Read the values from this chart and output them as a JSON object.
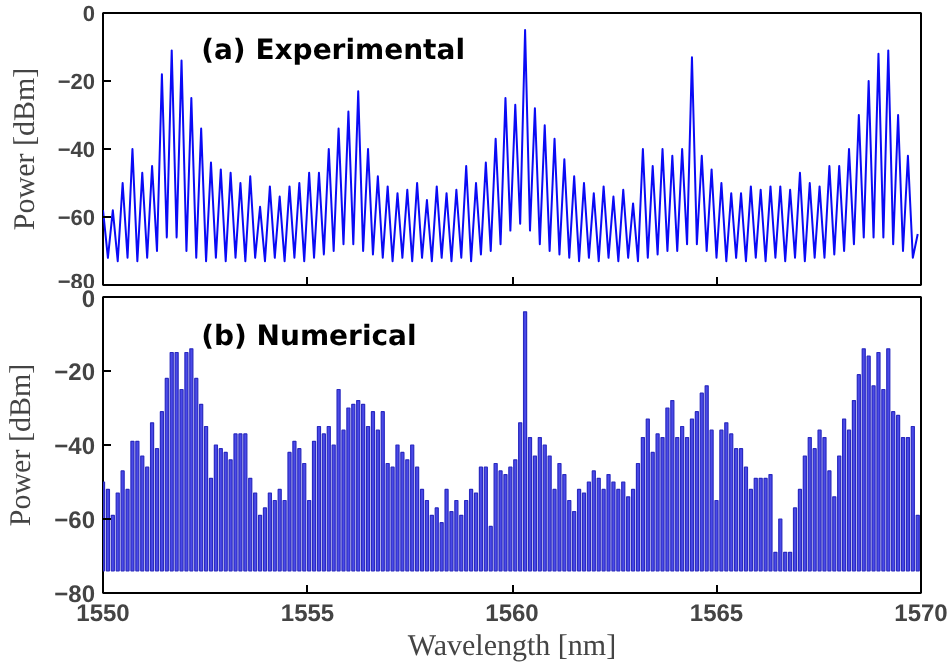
{
  "chart_data": [
    {
      "type": "line",
      "annotations": [
        "(a) Experimental"
      ],
      "ylabel": "Power [dBm]",
      "color": "#0a0af5",
      "tick_labels": "y",
      "xlim": [
        1550,
        1570
      ],
      "xticks": [
        1550,
        1555,
        1560,
        1565,
        1570
      ],
      "ylim": [
        -80,
        0
      ],
      "yticks": [
        0,
        -20,
        -40,
        -60,
        -80
      ],
      "x": [
        1550,
        1550.12,
        1550.24,
        1550.36,
        1550.48,
        1550.6,
        1550.72,
        1550.84,
        1550.96,
        1551.08,
        1551.2,
        1551.32,
        1551.44,
        1551.56,
        1551.68,
        1551.8,
        1551.92,
        1552.04,
        1552.16,
        1552.28,
        1552.4,
        1552.52,
        1552.64,
        1552.76,
        1552.88,
        1553,
        1553.12,
        1553.24,
        1553.36,
        1553.48,
        1553.6,
        1553.72,
        1553.84,
        1553.96,
        1554.08,
        1554.2,
        1554.32,
        1554.44,
        1554.56,
        1554.68,
        1554.8,
        1554.92,
        1555.04,
        1555.16,
        1555.28,
        1555.4,
        1555.52,
        1555.64,
        1555.76,
        1555.88,
        1556,
        1556.12,
        1556.24,
        1556.36,
        1556.48,
        1556.6,
        1556.72,
        1556.84,
        1556.96,
        1557.08,
        1557.2,
        1557.32,
        1557.44,
        1557.56,
        1557.68,
        1557.8,
        1557.92,
        1558.04,
        1558.16,
        1558.28,
        1558.4,
        1558.52,
        1558.64,
        1558.76,
        1558.88,
        1559,
        1559.12,
        1559.24,
        1559.36,
        1559.48,
        1559.6,
        1559.72,
        1559.84,
        1559.96,
        1560.08,
        1560.2,
        1560.32,
        1560.44,
        1560.56,
        1560.68,
        1560.8,
        1560.92,
        1561.04,
        1561.16,
        1561.28,
        1561.4,
        1561.52,
        1561.64,
        1561.76,
        1561.88,
        1562,
        1562.12,
        1562.24,
        1562.36,
        1562.48,
        1562.6,
        1562.72,
        1562.84,
        1562.96,
        1563.08,
        1563.2,
        1563.32,
        1563.44,
        1563.56,
        1563.68,
        1563.8,
        1563.92,
        1564.04,
        1564.16,
        1564.28,
        1564.4,
        1564.52,
        1564.64,
        1564.76,
        1564.88,
        1565,
        1565.12,
        1565.24,
        1565.36,
        1565.48,
        1565.6,
        1565.72,
        1565.84,
        1565.96,
        1566.08,
        1566.2,
        1566.32,
        1566.44,
        1566.56,
        1566.68,
        1566.8,
        1566.92,
        1567.04,
        1567.16,
        1567.28,
        1567.4,
        1567.52,
        1567.64,
        1567.76,
        1567.88,
        1568,
        1568.12,
        1568.24,
        1568.36,
        1568.48,
        1568.6,
        1568.72,
        1568.84,
        1568.96,
        1569.08,
        1569.2,
        1569.32,
        1569.44,
        1569.56,
        1569.68,
        1569.8,
        1569.92
      ],
      "values": [
        -58,
        -72,
        -58,
        -73,
        -50,
        -72,
        -40,
        -73,
        -47,
        -72,
        -45,
        -70,
        -18,
        -66,
        -11,
        -66,
        -14,
        -70,
        -25,
        -72,
        -34,
        -73,
        -44,
        -72,
        -46,
        -73,
        -47,
        -72,
        -50,
        -73,
        -48,
        -72,
        -57,
        -73,
        -51,
        -72,
        -54,
        -73,
        -51,
        -72,
        -50,
        -73,
        -47,
        -72,
        -47,
        -71,
        -40,
        -70,
        -34,
        -68,
        -29,
        -68,
        -23,
        -70,
        -40,
        -71,
        -48,
        -72,
        -51,
        -73,
        -53,
        -72,
        -52,
        -73,
        -50,
        -72,
        -55,
        -73,
        -51,
        -72,
        -53,
        -73,
        -52,
        -72,
        -45,
        -73,
        -50,
        -71,
        -44,
        -70,
        -37,
        -68,
        -25,
        -64,
        -27,
        -62,
        -5,
        -64,
        -28,
        -68,
        -33,
        -70,
        -37,
        -71,
        -43,
        -72,
        -48,
        -73,
        -50,
        -72,
        -53,
        -73,
        -51,
        -72,
        -54,
        -73,
        -52,
        -72,
        -56,
        -73,
        -40,
        -72,
        -45,
        -71,
        -40,
        -70,
        -42,
        -70,
        -40,
        -68,
        -13,
        -68,
        -42,
        -70,
        -46,
        -72,
        -50,
        -73,
        -53,
        -72,
        -53,
        -73,
        -51,
        -72,
        -52,
        -73,
        -51,
        -72,
        -51,
        -73,
        -52,
        -72,
        -47,
        -73,
        -50,
        -72,
        -51,
        -72,
        -45,
        -71,
        -45,
        -70,
        -40,
        -68,
        -30,
        -66,
        -20,
        -66,
        -12,
        -66,
        -11,
        -68,
        -30,
        -70,
        -42,
        -72,
        -65
      ]
    },
    {
      "type": "bar",
      "annotations": [
        "(b) Numerical"
      ],
      "ylabel": "Power [dBm]",
      "xlabel": "Wavelength [nm]",
      "color": "#4a4ae8",
      "xlim": [
        1550,
        1570
      ],
      "xticks": [
        1550,
        1555,
        1560,
        1565,
        1570
      ],
      "ylim": [
        -80,
        0
      ],
      "yticks": [
        0,
        -20,
        -40,
        -60,
        -80
      ],
      "x": [
        1550,
        1550.12,
        1550.24,
        1550.36,
        1550.48,
        1550.6,
        1550.72,
        1550.84,
        1550.96,
        1551.08,
        1551.2,
        1551.32,
        1551.44,
        1551.56,
        1551.68,
        1551.8,
        1551.92,
        1552.04,
        1552.16,
        1552.28,
        1552.4,
        1552.52,
        1552.64,
        1552.76,
        1552.88,
        1553,
        1553.12,
        1553.24,
        1553.36,
        1553.48,
        1553.6,
        1553.72,
        1553.84,
        1553.96,
        1554.08,
        1554.2,
        1554.32,
        1554.44,
        1554.56,
        1554.68,
        1554.8,
        1554.92,
        1555.04,
        1555.16,
        1555.28,
        1555.4,
        1555.52,
        1555.64,
        1555.76,
        1555.88,
        1556,
        1556.12,
        1556.24,
        1556.36,
        1556.48,
        1556.6,
        1556.72,
        1556.84,
        1556.96,
        1557.08,
        1557.2,
        1557.32,
        1557.44,
        1557.56,
        1557.68,
        1557.8,
        1557.92,
        1558.04,
        1558.16,
        1558.28,
        1558.4,
        1558.52,
        1558.64,
        1558.76,
        1558.88,
        1559,
        1559.12,
        1559.24,
        1559.36,
        1559.48,
        1559.6,
        1559.72,
        1559.84,
        1559.96,
        1560.08,
        1560.2,
        1560.32,
        1560.44,
        1560.56,
        1560.68,
        1560.8,
        1560.92,
        1561.04,
        1561.16,
        1561.28,
        1561.4,
        1561.52,
        1561.64,
        1561.76,
        1561.88,
        1562,
        1562.12,
        1562.24,
        1562.36,
        1562.48,
        1562.6,
        1562.72,
        1562.84,
        1562.96,
        1563.08,
        1563.2,
        1563.32,
        1563.44,
        1563.56,
        1563.68,
        1563.8,
        1563.92,
        1564.04,
        1564.16,
        1564.28,
        1564.4,
        1564.52,
        1564.64,
        1564.76,
        1564.88,
        1565,
        1565.12,
        1565.24,
        1565.36,
        1565.48,
        1565.6,
        1565.72,
        1565.84,
        1565.96,
        1566.08,
        1566.2,
        1566.32,
        1566.44,
        1566.56,
        1566.68,
        1566.8,
        1566.92,
        1567.04,
        1567.16,
        1567.28,
        1567.4,
        1567.52,
        1567.64,
        1567.76,
        1567.88,
        1568,
        1568.12,
        1568.24,
        1568.36,
        1568.48,
        1568.6,
        1568.72,
        1568.84,
        1568.96,
        1569.08,
        1569.2,
        1569.32,
        1569.44,
        1569.56,
        1569.68,
        1569.8,
        1569.92
      ],
      "values": [
        24,
        22,
        15,
        21,
        27,
        22,
        35,
        35,
        31,
        28,
        40,
        33,
        43,
        52,
        59,
        59,
        49,
        59,
        60,
        52,
        45,
        39,
        25,
        34,
        33,
        32,
        30,
        37,
        37,
        37,
        25,
        21,
        15,
        17,
        21,
        19,
        22,
        19,
        32,
        35,
        33,
        29,
        19,
        35,
        39,
        37,
        39,
        34,
        49,
        38,
        44,
        45,
        46,
        45,
        39,
        43,
        38,
        43,
        29,
        28,
        34,
        32,
        30,
        34,
        28,
        22,
        19,
        15,
        17,
        13,
        22,
        16,
        19,
        15,
        19,
        22,
        21,
        28,
        28,
        12,
        29,
        27,
        26,
        28,
        30,
        40,
        70,
        36,
        31,
        36,
        34,
        31,
        22,
        29,
        26,
        19,
        16,
        22,
        21,
        24,
        27,
        25,
        22,
        26,
        24,
        22,
        24,
        20,
        22,
        29,
        36,
        41,
        32,
        37,
        36,
        44,
        46,
        36,
        39,
        36,
        41,
        43,
        48,
        50,
        38,
        19,
        38,
        40,
        37,
        33,
        33,
        28,
        22,
        25,
        25,
        25,
        26,
        5,
        14,
        5,
        5,
        17,
        22,
        31,
        36,
        33,
        38,
        36,
        27,
        20,
        31,
        41,
        38,
        46,
        53,
        60,
        58,
        50,
        59,
        49,
        60,
        43,
        42,
        36,
        36,
        39,
        15
      ],
      "base": [
        -74,
        -74,
        -74,
        -74,
        -74,
        -74,
        -74,
        -74,
        -74,
        -74,
        -74,
        -74,
        -74,
        -74,
        -74,
        -74,
        -74,
        -74,
        -74,
        -74,
        -74,
        -74,
        -74,
        -74,
        -74,
        -74,
        -74,
        -74,
        -74,
        -74,
        -74,
        -74,
        -74,
        -74,
        -74,
        -74,
        -74,
        -74,
        -74,
        -74,
        -74,
        -74,
        -74,
        -74,
        -74,
        -74,
        -74,
        -74,
        -74,
        -74,
        -74,
        -74,
        -74,
        -74,
        -74,
        -74,
        -74,
        -74,
        -74,
        -74,
        -74,
        -74,
        -74,
        -74,
        -74,
        -74,
        -74,
        -74,
        -74,
        -74,
        -74,
        -74,
        -74,
        -74,
        -74,
        -74,
        -74,
        -74,
        -74,
        -74,
        -74,
        -74,
        -74,
        -74,
        -74,
        -74,
        -74,
        -74,
        -74,
        -74,
        -74,
        -74,
        -74,
        -74,
        -74,
        -74,
        -74,
        -74,
        -74,
        -74,
        -74,
        -74,
        -74,
        -74,
        -74,
        -74,
        -74,
        -74,
        -74,
        -74,
        -74,
        -74,
        -74,
        -74,
        -74,
        -74,
        -74,
        -74,
        -74,
        -74,
        -74,
        -74,
        -74,
        -74,
        -74,
        -74,
        -74,
        -74,
        -74,
        -74,
        -74,
        -74,
        -74,
        -74,
        -74,
        -74,
        -74,
        -74,
        -74,
        -74,
        -74,
        -74,
        -74,
        -74,
        -74,
        -74,
        -74,
        -74,
        -74,
        -74,
        -74,
        -74,
        -74,
        -74,
        -74,
        -74,
        -74,
        -74,
        -74,
        -74,
        -74,
        -74,
        -74,
        -74,
        -74,
        -74,
        -74
      ]
    }
  ]
}
